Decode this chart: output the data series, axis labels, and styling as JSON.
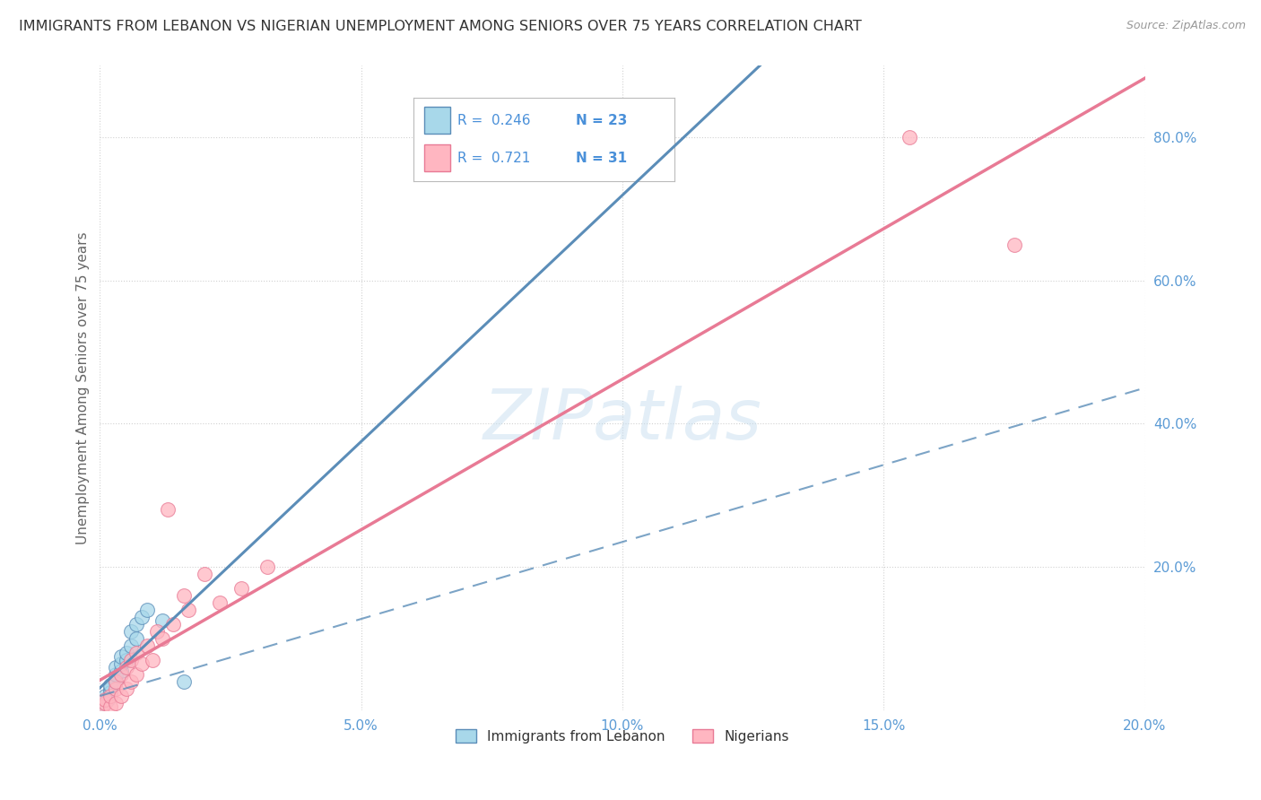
{
  "title": "IMMIGRANTS FROM LEBANON VS NIGERIAN UNEMPLOYMENT AMONG SENIORS OVER 75 YEARS CORRELATION CHART",
  "source": "Source: ZipAtlas.com",
  "ylabel": "Unemployment Among Seniors over 75 years",
  "xlim": [
    0.0,
    0.2
  ],
  "ylim": [
    0.0,
    0.9
  ],
  "xticklabels": [
    "0.0%",
    "",
    "5.0%",
    "",
    "10.0%",
    "",
    "15.0%",
    "",
    "20.0%"
  ],
  "xtickvals": [
    0.0,
    0.025,
    0.05,
    0.075,
    0.1,
    0.125,
    0.15,
    0.175,
    0.2
  ],
  "xticklabels_shown": [
    "0.0%",
    "5.0%",
    "10.0%",
    "15.0%",
    "20.0%"
  ],
  "xtickvals_shown": [
    0.0,
    0.05,
    0.1,
    0.15,
    0.2
  ],
  "yticklabels_right": [
    "20.0%",
    "40.0%",
    "60.0%",
    "80.0%"
  ],
  "ytickvals_right": [
    0.2,
    0.4,
    0.6,
    0.8
  ],
  "legend_r1": "R =  0.246",
  "legend_n1": "N = 23",
  "legend_r2": "R =  0.721",
  "legend_n2": "N = 31",
  "color_blue": "#A8D8EA",
  "color_pink": "#FFB6C1",
  "color_blue_dark": "#5B8DB8",
  "color_pink_dark": "#E87A95",
  "color_blue_text": "#4A90D9",
  "color_axis_text": "#5B9BD5",
  "watermark": "ZIPatlas",
  "lebanon_x": [
    0.0005,
    0.001,
    0.001,
    0.0015,
    0.002,
    0.002,
    0.002,
    0.003,
    0.003,
    0.003,
    0.004,
    0.004,
    0.004,
    0.005,
    0.005,
    0.006,
    0.006,
    0.007,
    0.007,
    0.008,
    0.009,
    0.012,
    0.016
  ],
  "lebanon_y": [
    0.005,
    0.01,
    0.02,
    0.015,
    0.03,
    0.025,
    0.035,
    0.04,
    0.05,
    0.06,
    0.055,
    0.065,
    0.075,
    0.07,
    0.08,
    0.09,
    0.11,
    0.1,
    0.12,
    0.13,
    0.14,
    0.125,
    0.04
  ],
  "nigeria_x": [
    0.0005,
    0.001,
    0.001,
    0.002,
    0.002,
    0.003,
    0.003,
    0.003,
    0.004,
    0.004,
    0.005,
    0.005,
    0.006,
    0.006,
    0.007,
    0.007,
    0.008,
    0.009,
    0.01,
    0.011,
    0.012,
    0.013,
    0.014,
    0.016,
    0.017,
    0.02,
    0.023,
    0.027,
    0.032,
    0.155,
    0.175
  ],
  "nigeria_y": [
    0.005,
    0.01,
    0.015,
    0.005,
    0.02,
    0.01,
    0.03,
    0.04,
    0.02,
    0.05,
    0.03,
    0.06,
    0.04,
    0.07,
    0.05,
    0.08,
    0.065,
    0.09,
    0.07,
    0.11,
    0.1,
    0.28,
    0.12,
    0.16,
    0.14,
    0.19,
    0.15,
    0.17,
    0.2,
    0.8,
    0.65
  ]
}
